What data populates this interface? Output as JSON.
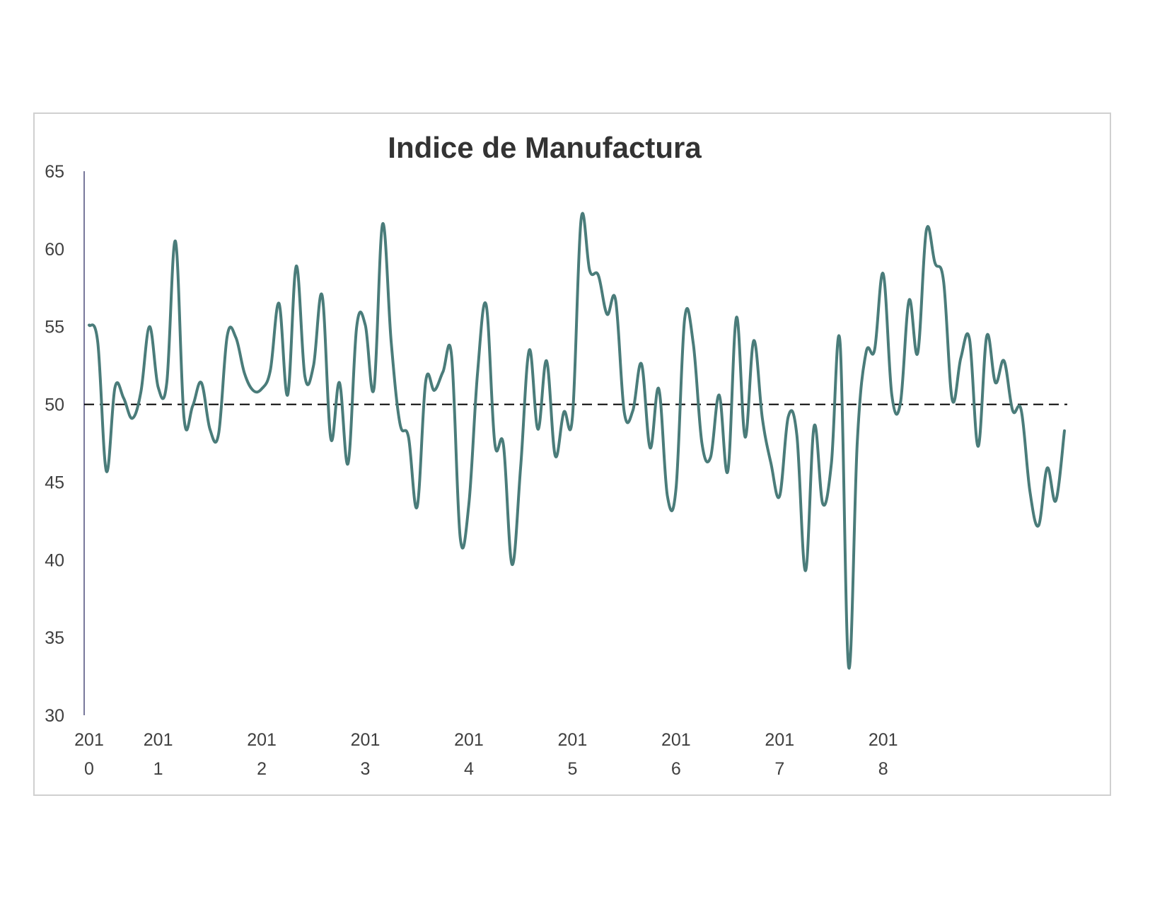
{
  "chart_data": {
    "type": "line",
    "title": "Indice de Manufactura",
    "xlabel": "",
    "ylabel": "",
    "ylim": [
      30,
      65
    ],
    "yticks": [
      "30",
      "35",
      "40",
      "45",
      "50",
      "55",
      "60",
      "65"
    ],
    "reference_line": 50,
    "xticks": [
      {
        "index": 0,
        "line1": "201",
        "line2": "0"
      },
      {
        "index": 8,
        "line1": "201",
        "line2": "1"
      },
      {
        "index": 20,
        "line1": "201",
        "line2": "2"
      },
      {
        "index": 32,
        "line1": "201",
        "line2": "3"
      },
      {
        "index": 44,
        "line1": "201",
        "line2": "4"
      },
      {
        "index": 56,
        "line1": "201",
        "line2": "5"
      },
      {
        "index": 68,
        "line1": "201",
        "line2": "6"
      },
      {
        "index": 80,
        "line1": "201",
        "line2": "7"
      },
      {
        "index": 92,
        "line1": "201",
        "line2": "8"
      }
    ],
    "series": [
      {
        "color": "#4a7c7a",
        "values": [
          55.1,
          54.0,
          45.7,
          51.1,
          50.4,
          49.1,
          50.8,
          55.0,
          51.1,
          51.4,
          60.5,
          49.1,
          49.9,
          51.4,
          48.4,
          48.1,
          54.4,
          54.3,
          52.0,
          50.9,
          51.0,
          52.2,
          56.5,
          50.6,
          58.9,
          51.8,
          52.5,
          57.0,
          47.8,
          51.4,
          46.2,
          55.0,
          55.1,
          51.0,
          61.6,
          54.0,
          48.8,
          47.9,
          43.4,
          51.5,
          50.9,
          52.1,
          53.1,
          41.4,
          43.6,
          52.0,
          56.4,
          47.5,
          47.4,
          39.7,
          46.0,
          53.5,
          48.4,
          52.8,
          46.7,
          49.5,
          49.2,
          61.9,
          58.6,
          58.3,
          55.8,
          56.7,
          49.5,
          49.6,
          52.6,
          47.2,
          51.0,
          44.1,
          44.6,
          55.5,
          53.9,
          47.5,
          46.6,
          50.6,
          45.7,
          55.6,
          47.9,
          54.1,
          49.1,
          46.2,
          44.1,
          49.2,
          48.0,
          39.3,
          48.6,
          43.6,
          46.2,
          54.0,
          33.1,
          47.6,
          53.3,
          53.5,
          58.4,
          50.6,
          50.1,
          56.7,
          53.3,
          61.2,
          59.1,
          57.9,
          50.3,
          53.0,
          54.2,
          47.3,
          54.4,
          51.4,
          52.8,
          49.6,
          49.6,
          44.4,
          42.2,
          45.9,
          43.8,
          48.3
        ]
      }
    ],
    "grid": false,
    "legend": "none"
  }
}
